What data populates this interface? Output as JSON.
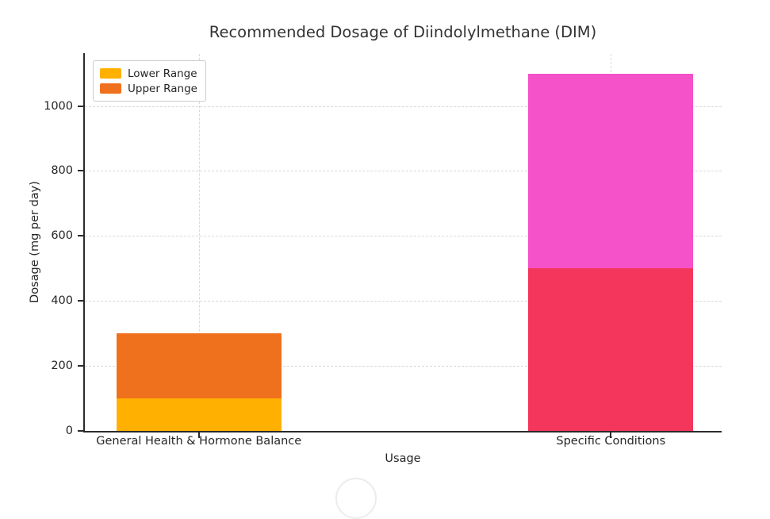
{
  "chart_data": {
    "type": "bar",
    "stacked": true,
    "title": "Recommended Dosage of Diindolylmethane (DIM)",
    "xlabel": "Usage",
    "ylabel": "Dosage (mg per day)",
    "categories": [
      "General Health & Hormone Balance",
      "Specific Conditions"
    ],
    "series": [
      {
        "name": "Lower Range",
        "values": [
          100,
          500
        ]
      },
      {
        "name": "Upper Range",
        "values": [
          300,
          1100
        ]
      }
    ],
    "bars": [
      {
        "category": "General Health & Hormone Balance",
        "segments": [
          {
            "label": "Lower Range",
            "from": 0,
            "to": 100,
            "color": "#FFB000"
          },
          {
            "label": "Upper Range",
            "from": 100,
            "to": 300,
            "color": "#F0711D"
          }
        ]
      },
      {
        "category": "Specific Conditions",
        "segments": [
          {
            "label": "Lower Range",
            "from": 0,
            "to": 500,
            "color": "#F5365C"
          },
          {
            "label": "Upper Range",
            "from": 500,
            "to": 1100,
            "color": "#F551C9"
          }
        ]
      }
    ],
    "yticks": [
      0,
      200,
      400,
      600,
      800,
      1000
    ],
    "ylim": [
      0,
      1160
    ],
    "grid": "dashed",
    "legend_position": "upper left",
    "colors": {
      "grid": "#d9d9d9",
      "spine": "#2b2b2b",
      "text": "#262626"
    }
  },
  "legend": {
    "items": [
      {
        "label": "Lower Range",
        "color": "#FFB000"
      },
      {
        "label": "Upper Range",
        "color": "#F0711D"
      }
    ]
  }
}
